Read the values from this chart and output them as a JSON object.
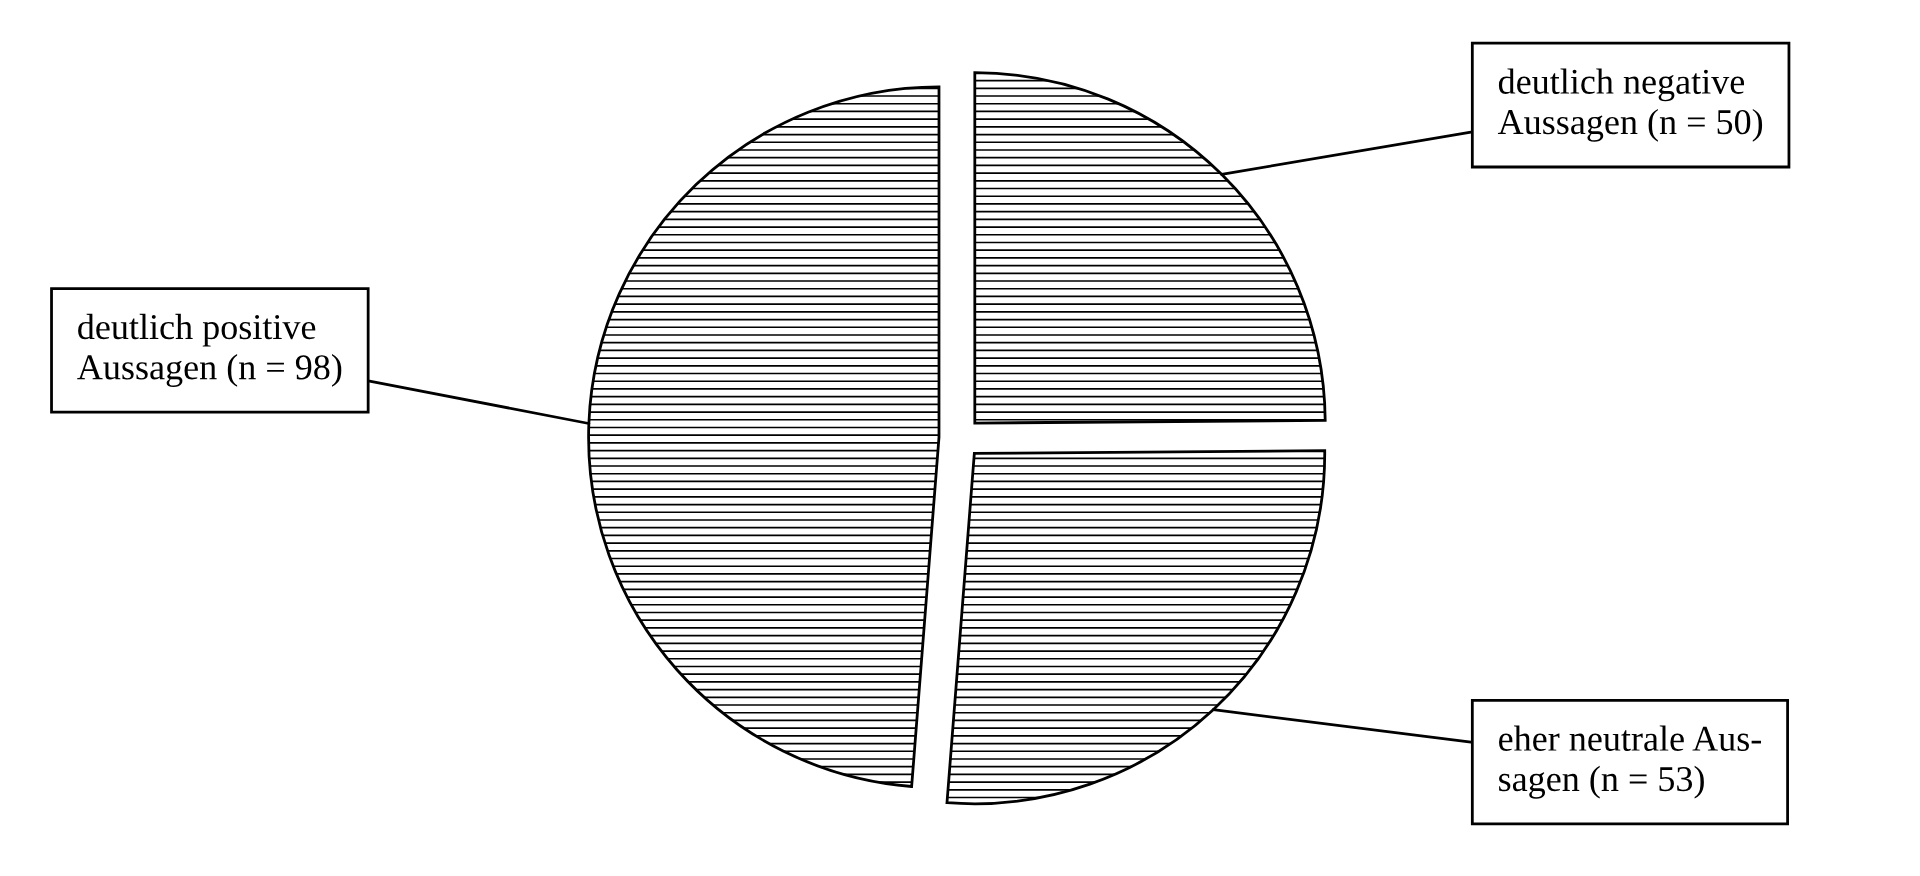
{
  "chart_data": {
    "type": "pie",
    "categories": [
      "deutlich negative\nAussagen",
      "eher neutrale Aus-\nsagen",
      "deutlich positive\nAussagen"
    ],
    "values": [
      50,
      53,
      98
    ],
    "value_labels": [
      "(n = 50)",
      "(n = 53)",
      "(n = 98)"
    ],
    "colors": [
      "#ffffff",
      "#ffffff",
      "#ffffff"
    ],
    "legend": false
  }
}
